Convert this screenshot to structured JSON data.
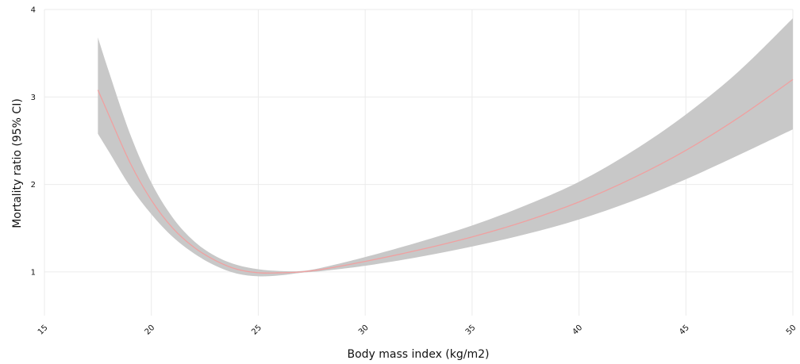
{
  "chart_data": {
    "type": "line",
    "title": "",
    "xlabel": "Body mass index (kg/m2)",
    "ylabel": "Mortality ratio (95% CI)",
    "xlim": [
      15,
      50
    ],
    "ylim": [
      0.5,
      4
    ],
    "x_ticks": [
      15,
      20,
      25,
      30,
      35,
      40,
      45,
      50
    ],
    "y_ticks": [
      1,
      2,
      3,
      4
    ],
    "grid": true,
    "series": [
      {
        "line_color": "#f0a0a0",
        "band_color": "#c8c8c8",
        "points": [
          {
            "x": 17.5,
            "y": 3.08,
            "lower": 2.58,
            "upper": 3.68
          },
          {
            "x": 18.0,
            "y": 2.8,
            "lower": 2.38,
            "upper": 3.3
          },
          {
            "x": 19.0,
            "y": 2.25,
            "lower": 1.98,
            "upper": 2.58
          },
          {
            "x": 20.0,
            "y": 1.82,
            "lower": 1.66,
            "upper": 2.02
          },
          {
            "x": 21.0,
            "y": 1.5,
            "lower": 1.4,
            "upper": 1.62
          },
          {
            "x": 22.0,
            "y": 1.28,
            "lower": 1.21,
            "upper": 1.35
          },
          {
            "x": 23.0,
            "y": 1.13,
            "lower": 1.07,
            "upper": 1.18
          },
          {
            "x": 24.0,
            "y": 1.03,
            "lower": 0.98,
            "upper": 1.08
          },
          {
            "x": 25.0,
            "y": 0.99,
            "lower": 0.95,
            "upper": 1.03
          },
          {
            "x": 26.0,
            "y": 0.99,
            "lower": 0.96,
            "upper": 1.01
          },
          {
            "x": 27.0,
            "y": 1.0,
            "lower": 0.99,
            "upper": 1.01
          },
          {
            "x": 28.0,
            "y": 1.03,
            "lower": 1.01,
            "upper": 1.05
          },
          {
            "x": 30.0,
            "y": 1.12,
            "lower": 1.07,
            "upper": 1.17
          },
          {
            "x": 32.5,
            "y": 1.25,
            "lower": 1.17,
            "upper": 1.34
          },
          {
            "x": 35.0,
            "y": 1.4,
            "lower": 1.29,
            "upper": 1.53
          },
          {
            "x": 37.5,
            "y": 1.58,
            "lower": 1.43,
            "upper": 1.76
          },
          {
            "x": 40.0,
            "y": 1.8,
            "lower": 1.6,
            "upper": 2.03
          },
          {
            "x": 42.5,
            "y": 2.07,
            "lower": 1.81,
            "upper": 2.38
          },
          {
            "x": 45.0,
            "y": 2.39,
            "lower": 2.06,
            "upper": 2.8
          },
          {
            "x": 47.5,
            "y": 2.77,
            "lower": 2.34,
            "upper": 3.3
          },
          {
            "x": 50.0,
            "y": 3.2,
            "lower": 2.63,
            "upper": 3.9
          }
        ]
      }
    ]
  }
}
